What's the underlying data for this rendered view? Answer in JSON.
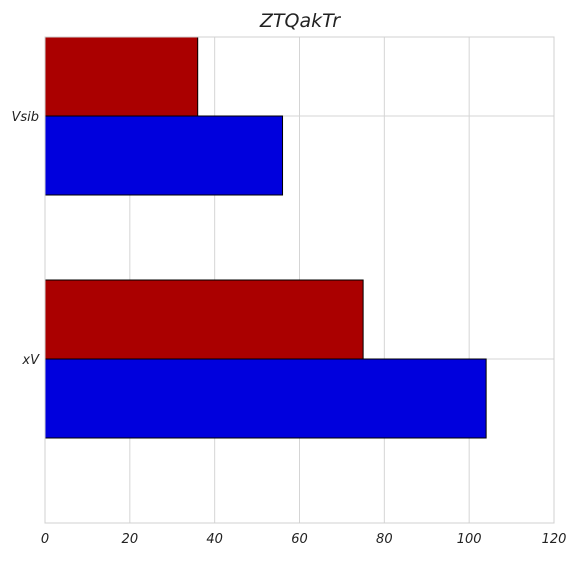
{
  "chart_data": {
    "type": "bar",
    "orientation": "horizontal",
    "title": "ZTQakTr",
    "xlabel": "",
    "ylabel": "",
    "categories": [
      "Vsib",
      "xV"
    ],
    "series": [
      {
        "values": [
          56,
          104
        ],
        "color": "#0000dd"
      },
      {
        "values": [
          36,
          75
        ],
        "color": "#aa0000"
      }
    ],
    "xlim": [
      0,
      120
    ],
    "xticks": [
      0,
      20,
      40,
      60,
      80,
      100,
      120
    ],
    "grid": true,
    "legend": "none"
  }
}
